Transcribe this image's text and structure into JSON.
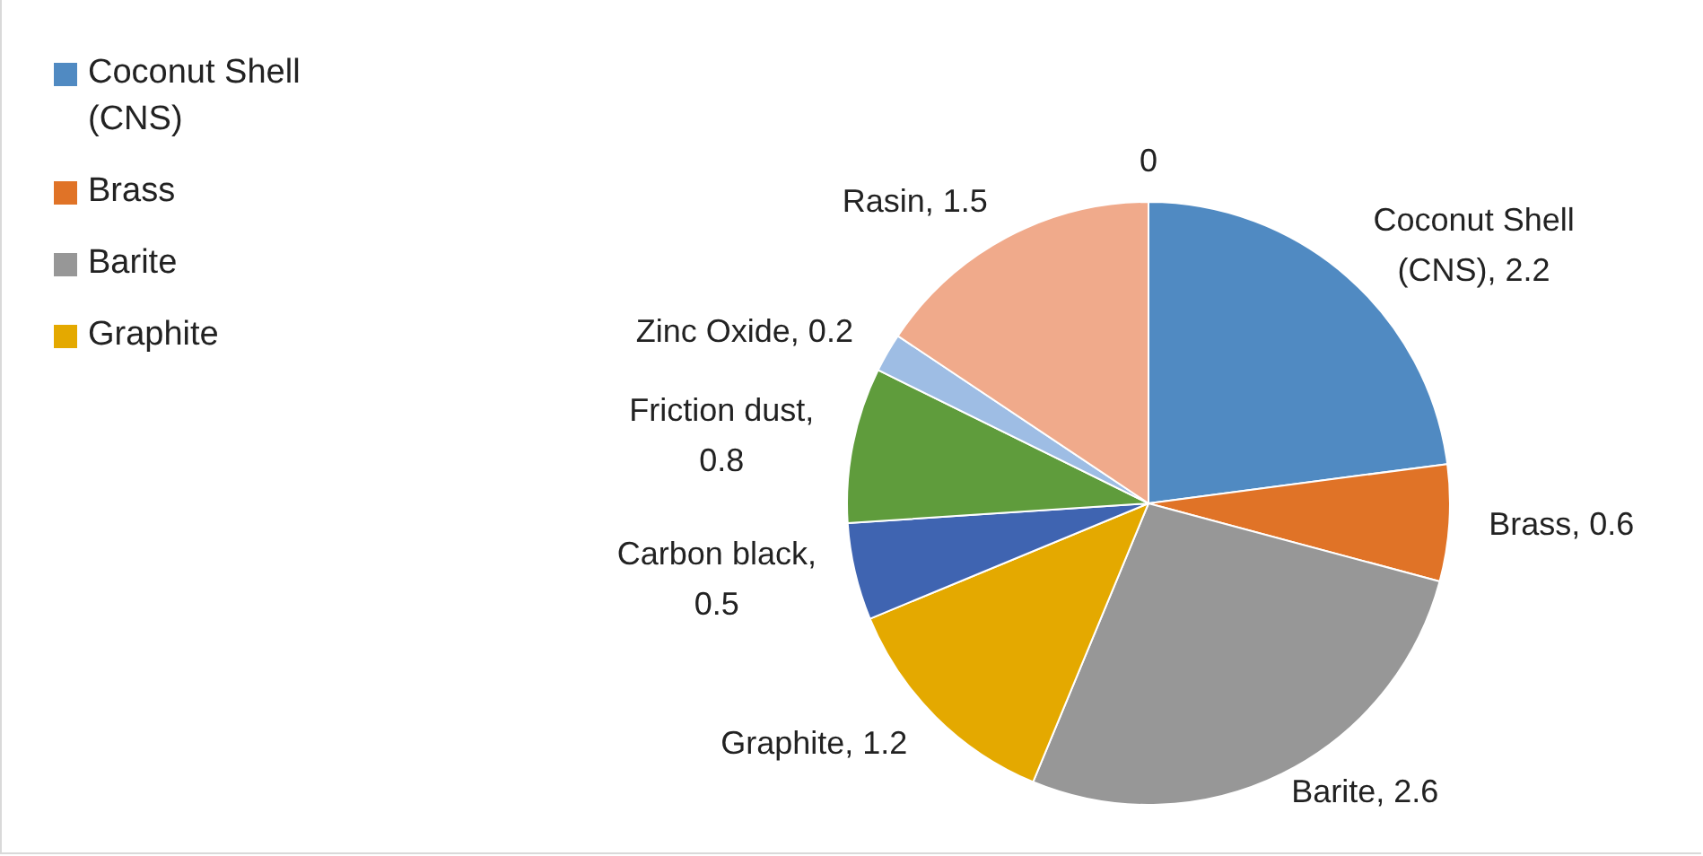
{
  "chart_data": {
    "type": "pie",
    "categories": [
      "Coconut Shell (CNS)",
      "Brass",
      "Barite",
      "Graphite",
      "Carbon black",
      "Friction dust",
      "Zinc Oxide",
      "Rasin",
      null
    ],
    "values": [
      2.2,
      0.6,
      2.6,
      1.2,
      0.5,
      0.8,
      0.2,
      1.5,
      0
    ],
    "colors": [
      "#508ac2",
      "#e07327",
      "#979797",
      "#e4a900",
      "#3f64b1",
      "#5f9c3c",
      "#9ebde4",
      "#f0aa8b",
      "#4f81bd"
    ],
    "value_labels": [
      ", 2.2",
      ", 0.6",
      ", 2.6",
      ", 1.2",
      ", 0.5",
      ", 0.8",
      ", 0.2",
      ", 1.5",
      "0"
    ],
    "legend": "top left"
  }
}
